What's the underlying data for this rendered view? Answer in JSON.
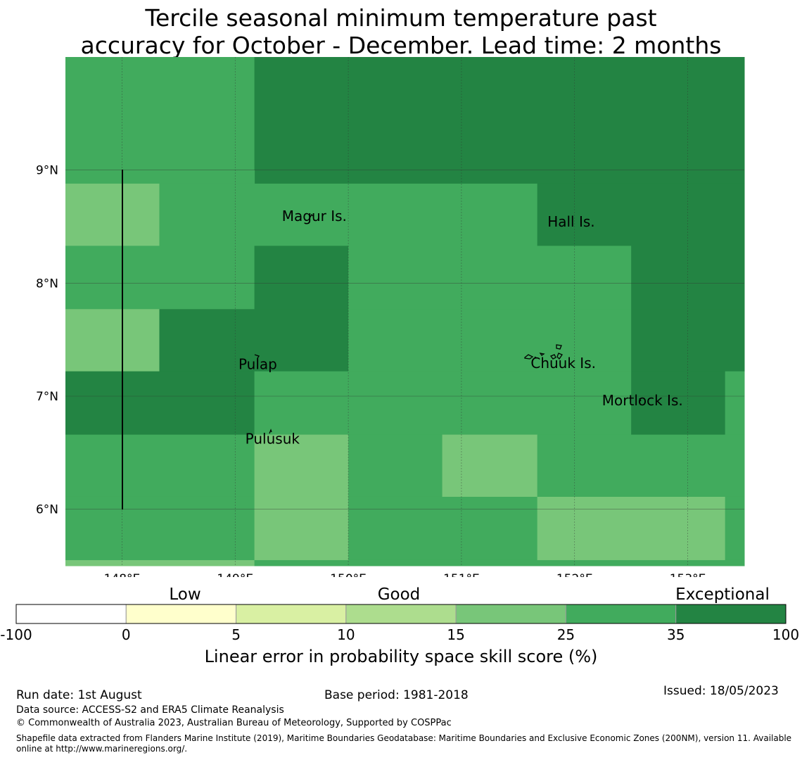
{
  "title_line1": "Tercile seasonal minimum temperature past",
  "title_line2": "accuracy for October - December. Lead time: 2 months",
  "colors": {
    "c1": "#ffffcc",
    "c2": "#d9f0a3",
    "c3": "#addd8e",
    "c4": "#78c679",
    "c5": "#41ab5d",
    "c6": "#238443",
    "grid": "#333333"
  },
  "map": {
    "x_ticks": [
      "148°E",
      "149°E",
      "150°E",
      "151°E",
      "152°E",
      "153°E"
    ],
    "y_ticks": [
      "9°N",
      "8°N",
      "7°N",
      "6°N"
    ],
    "places": [
      {
        "name": "Magur Is.",
        "lon": 149.7,
        "lat": 8.55
      },
      {
        "name": "Hall Is.",
        "lon": 151.97,
        "lat": 8.5
      },
      {
        "name": "Pulap",
        "lon": 149.2,
        "lat": 7.24
      },
      {
        "name": "Chuuk Is.",
        "lon": 151.9,
        "lat": 7.25
      },
      {
        "name": "Mortlock Is.",
        "lon": 152.6,
        "lat": 6.92
      },
      {
        "name": "Pulusuk",
        "lon": 149.33,
        "lat": 6.58
      }
    ]
  },
  "legend": {
    "categories": [
      "Low",
      "Good",
      "Exceptional"
    ],
    "bounds": [
      "-100",
      "0",
      "5",
      "10",
      "15",
      "25",
      "35",
      "100"
    ],
    "colors": [
      "#ffffff",
      "#ffffcc",
      "#d9f0a3",
      "#addd8e",
      "#78c679",
      "#41ab5d",
      "#238443"
    ],
    "label": "Linear error in probability space skill score (%)"
  },
  "footer": {
    "run_date": "Run date: 1st August",
    "base_period": "Base period: 1981-2018",
    "issued": "Issued: 18/05/2023",
    "data_source": "Data source: ACCESS-S2 and ERA5 Climate Reanalysis",
    "copyright": "© Commonwealth of Australia 2023, Australian Bureau of Meteorology, Supported by COSPPac",
    "shapefile": "Shapefile data extracted from Flanders Marine Institute (2019), Maritime Boundaries Geodatabase: Maritime Boundaries and Exclusive Economic Zones (200NM), version 11. Available online at http://www.marineregions.org/."
  },
  "chart_data": {
    "type": "heatmap",
    "title": "Tercile seasonal minimum temperature past accuracy for October - December. Lead time: 2 months",
    "lon_range": [
      147.5,
      153.5
    ],
    "lat_range": [
      5.5,
      10.0
    ],
    "colorbar_label": "Linear error in probability space skill score (%)",
    "bins": [
      -100,
      0,
      5,
      10,
      15,
      25,
      35,
      100
    ],
    "cells": [
      {
        "lon": [
          147.5,
          149.17
        ],
        "lat": [
          9.0,
          10.0
        ],
        "bin": "25-35"
      },
      {
        "lon": [
          149.17,
          153.5
        ],
        "lat": [
          9.0,
          10.0
        ],
        "bin": "35-100"
      },
      {
        "lon": [
          147.5,
          153.5
        ],
        "lat": [
          8.88,
          9.0
        ],
        "bin": "35-100"
      },
      {
        "lon": [
          147.5,
          149.17
        ],
        "lat": [
          8.88,
          9.0
        ],
        "bin": "25-35"
      },
      {
        "lon": [
          147.5,
          148.33
        ],
        "lat": [
          8.33,
          8.88
        ],
        "bin": "15-25"
      },
      {
        "lon": [
          148.33,
          151.67
        ],
        "lat": [
          8.33,
          8.88
        ],
        "bin": "25-35"
      },
      {
        "lon": [
          151.67,
          153.5
        ],
        "lat": [
          8.33,
          8.88
        ],
        "bin": "35-100"
      },
      {
        "lon": [
          147.5,
          149.17
        ],
        "lat": [
          7.77,
          8.33
        ],
        "bin": "25-35"
      },
      {
        "lon": [
          149.17,
          150.0
        ],
        "lat": [
          7.77,
          8.33
        ],
        "bin": "35-100"
      },
      {
        "lon": [
          150.0,
          152.5
        ],
        "lat": [
          7.77,
          8.33
        ],
        "bin": "25-35"
      },
      {
        "lon": [
          152.5,
          153.5
        ],
        "lat": [
          7.77,
          8.33
        ],
        "bin": "35-100"
      },
      {
        "lon": [
          147.5,
          148.33
        ],
        "lat": [
          7.22,
          7.77
        ],
        "bin": "15-25"
      },
      {
        "lon": [
          148.33,
          150.0
        ],
        "lat": [
          7.22,
          7.77
        ],
        "bin": "35-100"
      },
      {
        "lon": [
          150.0,
          152.5
        ],
        "lat": [
          7.22,
          7.77
        ],
        "bin": "25-35"
      },
      {
        "lon": [
          152.5,
          153.5
        ],
        "lat": [
          7.22,
          7.77
        ],
        "bin": "35-100"
      },
      {
        "lon": [
          147.5,
          149.17
        ],
        "lat": [
          6.66,
          7.22
        ],
        "bin": "35-100"
      },
      {
        "lon": [
          149.17,
          152.5
        ],
        "lat": [
          6.66,
          7.22
        ],
        "bin": "25-35"
      },
      {
        "lon": [
          152.5,
          153.33
        ],
        "lat": [
          6.66,
          7.22
        ],
        "bin": "35-100"
      },
      {
        "lon": [
          153.33,
          153.5
        ],
        "lat": [
          6.66,
          7.22
        ],
        "bin": "25-35"
      },
      {
        "lon": [
          147.5,
          149.17
        ],
        "lat": [
          6.11,
          6.66
        ],
        "bin": "25-35"
      },
      {
        "lon": [
          149.17,
          150.0
        ],
        "lat": [
          6.11,
          6.66
        ],
        "bin": "15-25"
      },
      {
        "lon": [
          150.0,
          150.83
        ],
        "lat": [
          6.11,
          6.66
        ],
        "bin": "25-35"
      },
      {
        "lon": [
          150.83,
          151.67
        ],
        "lat": [
          6.11,
          6.66
        ],
        "bin": "15-25"
      },
      {
        "lon": [
          151.67,
          153.5
        ],
        "lat": [
          6.11,
          6.66
        ],
        "bin": "25-35"
      },
      {
        "lon": [
          147.5,
          149.17
        ],
        "lat": [
          5.55,
          6.11
        ],
        "bin": "25-35"
      },
      {
        "lon": [
          149.17,
          150.0
        ],
        "lat": [
          5.55,
          6.11
        ],
        "bin": "15-25"
      },
      {
        "lon": [
          150.0,
          151.67
        ],
        "lat": [
          5.55,
          6.11
        ],
        "bin": "25-35"
      },
      {
        "lon": [
          151.67,
          153.33
        ],
        "lat": [
          5.55,
          6.11
        ],
        "bin": "15-25"
      },
      {
        "lon": [
          153.33,
          153.5
        ],
        "lat": [
          5.55,
          6.11
        ],
        "bin": "25-35"
      },
      {
        "lon": [
          147.5,
          149.17
        ],
        "lat": [
          5.5,
          5.55
        ],
        "bin": "15-25"
      },
      {
        "lon": [
          149.17,
          153.5
        ],
        "lat": [
          5.5,
          5.55
        ],
        "bin": "25-35"
      }
    ]
  }
}
